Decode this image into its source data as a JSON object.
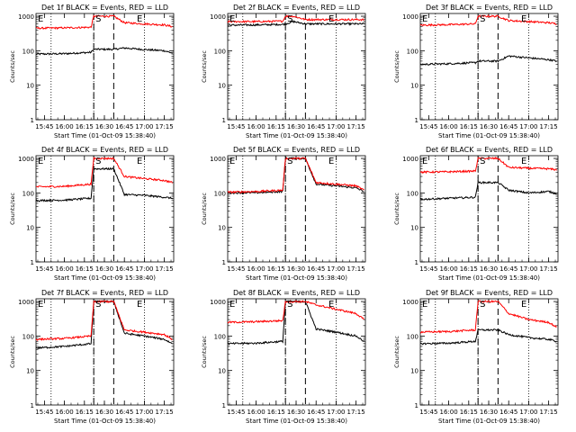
{
  "chart_data": [
    {
      "type": "line",
      "title": "Det 1f BLACK = Events, RED = LLD",
      "ylabel": "Counts/sec",
      "xlabel": "Start Time (01-Oct-09 15:38:40)",
      "x_ticks": [
        "15:45",
        "16:00",
        "16:15",
        "16:30",
        "16:45",
        "17:00",
        "17:15"
      ],
      "y_ticks": [
        "1",
        "10",
        "100",
        "1000"
      ],
      "y_scale": "log",
      "ylim": [
        1,
        1200
      ],
      "x_range": [
        "15:38:40",
        "17:22:00"
      ],
      "markers": [
        {
          "label": "E",
          "time": "15:38:40"
        },
        {
          "label": "S",
          "time": "16:22:00"
        },
        {
          "label": "E",
          "time": "16:53:00"
        }
      ],
      "dotted_lines": [
        "15:50",
        "16:22",
        "17:00"
      ],
      "dashed_lines": [
        "16:22",
        "16:37"
      ],
      "series": [
        {
          "color": "#000000",
          "x": [
            "15:38:40",
            "16:00",
            "16:20",
            "16:22",
            "16:37",
            "16:45",
            "17:00",
            "17:15",
            "17:21"
          ],
          "values": [
            80,
            82,
            90,
            110,
            110,
            120,
            108,
            100,
            85
          ]
        },
        {
          "color": "#ff0000",
          "x": [
            "15:38:40",
            "16:00",
            "16:20",
            "16:22",
            "16:37",
            "16:45",
            "17:00",
            "17:15",
            "17:21"
          ],
          "values": [
            450,
            460,
            480,
            1000,
            1000,
            650,
            600,
            560,
            500
          ]
        }
      ]
    },
    {
      "type": "line",
      "title": "Det 2f BLACK = Events, RED = LLD",
      "ylabel": "Counts/sec",
      "xlabel": "Start Time (01-Oct-09 15:38:40)",
      "x_ticks": [
        "15:45",
        "16:00",
        "16:15",
        "16:30",
        "16:45",
        "17:00",
        "17:15"
      ],
      "y_ticks": [
        "1",
        "10",
        "100",
        "1000"
      ],
      "y_scale": "log",
      "ylim": [
        1,
        1200
      ],
      "x_range": [
        "15:38:40",
        "17:22:00"
      ],
      "markers": [
        {
          "label": "E",
          "time": "15:38:40"
        },
        {
          "label": "S",
          "time": "16:22:00"
        },
        {
          "label": "E",
          "time": "16:53:00"
        }
      ],
      "dotted_lines": [
        "15:50",
        "16:22",
        "17:00"
      ],
      "dashed_lines": [
        "16:22",
        "16:37"
      ],
      "series": [
        {
          "color": "#000000",
          "x": [
            "15:38:40",
            "16:00",
            "16:20",
            "16:22",
            "16:28",
            "16:37",
            "17:00",
            "17:21"
          ],
          "values": [
            550,
            560,
            580,
            600,
            700,
            600,
            600,
            600
          ]
        },
        {
          "color": "#ff0000",
          "x": [
            "15:38:40",
            "16:00",
            "16:20",
            "16:22",
            "16:28",
            "16:37",
            "17:00",
            "17:21"
          ],
          "values": [
            700,
            700,
            720,
            1000,
            1000,
            800,
            800,
            800
          ]
        }
      ]
    },
    {
      "type": "line",
      "title": "Det 3f BLACK = Events, RED = LLD",
      "ylabel": "Counts/sec",
      "xlabel": "Start Time (01-Oct-09 15:38:40)",
      "x_ticks": [
        "15:45",
        "16:00",
        "16:15",
        "16:30",
        "16:45",
        "17:00",
        "17:15"
      ],
      "y_ticks": [
        "1",
        "10",
        "100",
        "1000"
      ],
      "y_scale": "log",
      "ylim": [
        1,
        1200
      ],
      "x_range": [
        "15:38:40",
        "17:22:00"
      ],
      "markers": [
        {
          "label": "E",
          "time": "15:38:40"
        },
        {
          "label": "S",
          "time": "16:22:00"
        },
        {
          "label": "E",
          "time": "16:53:00"
        }
      ],
      "dotted_lines": [
        "15:50",
        "16:22",
        "17:00"
      ],
      "dashed_lines": [
        "16:22",
        "16:37"
      ],
      "series": [
        {
          "color": "#000000",
          "x": [
            "15:38:40",
            "16:00",
            "16:20",
            "16:22",
            "16:37",
            "16:45",
            "17:00",
            "17:15",
            "17:21"
          ],
          "values": [
            40,
            42,
            45,
            50,
            50,
            70,
            62,
            55,
            50
          ]
        },
        {
          "color": "#ff0000",
          "x": [
            "15:38:40",
            "16:00",
            "16:20",
            "16:22",
            "16:37",
            "16:45",
            "17:00",
            "17:15",
            "17:21"
          ],
          "values": [
            550,
            570,
            600,
            1000,
            1000,
            750,
            700,
            650,
            600
          ]
        }
      ]
    },
    {
      "type": "line",
      "title": "Det 4f BLACK = Events, RED = LLD",
      "ylabel": "Counts/sec",
      "xlabel": "Start Time (01-Oct-09 15:38:40)",
      "x_ticks": [
        "15:45",
        "16:00",
        "16:15",
        "16:30",
        "16:45",
        "17:00",
        "17:15"
      ],
      "y_ticks": [
        "1",
        "10",
        "100",
        "1000"
      ],
      "y_scale": "log",
      "ylim": [
        1,
        1200
      ],
      "x_range": [
        "15:38:40",
        "17:22:00"
      ],
      "markers": [
        {
          "label": "E",
          "time": "15:38:40"
        },
        {
          "label": "S",
          "time": "16:22:00"
        },
        {
          "label": "E",
          "time": "16:53:00"
        }
      ],
      "dotted_lines": [
        "15:50",
        "16:22",
        "17:00"
      ],
      "dashed_lines": [
        "16:22",
        "16:37"
      ],
      "series": [
        {
          "color": "#000000",
          "x": [
            "15:38:40",
            "16:00",
            "16:20",
            "16:22",
            "16:37",
            "16:45",
            "17:00",
            "17:15",
            "17:21"
          ],
          "values": [
            60,
            62,
            70,
            500,
            500,
            90,
            85,
            75,
            70
          ]
        },
        {
          "color": "#ff0000",
          "x": [
            "15:38:40",
            "16:00",
            "16:20",
            "16:22",
            "16:37",
            "16:45",
            "17:00",
            "17:15",
            "17:21"
          ],
          "values": [
            150,
            155,
            180,
            1000,
            1000,
            300,
            260,
            230,
            200
          ]
        }
      ]
    },
    {
      "type": "line",
      "title": "Det 5f BLACK = Events, RED = LLD",
      "ylabel": "Counts/sec",
      "xlabel": "Start Time (01-Oct-09 15:38:40)",
      "x_ticks": [
        "15:45",
        "16:00",
        "16:15",
        "16:30",
        "16:45",
        "17:00",
        "17:15"
      ],
      "y_ticks": [
        "1",
        "10",
        "100",
        "1000"
      ],
      "y_scale": "log",
      "ylim": [
        1,
        1200
      ],
      "x_range": [
        "15:38:40",
        "17:22:00"
      ],
      "markers": [
        {
          "label": "E",
          "time": "15:38:40"
        },
        {
          "label": "S",
          "time": "16:22:00"
        },
        {
          "label": "E",
          "time": "16:53:00"
        }
      ],
      "dotted_lines": [
        "15:50",
        "16:22",
        "17:00"
      ],
      "dashed_lines": [
        "16:22",
        "16:37"
      ],
      "series": [
        {
          "color": "#000000",
          "x": [
            "15:38:40",
            "16:00",
            "16:20",
            "16:22",
            "16:37",
            "16:45",
            "17:00",
            "17:15",
            "17:21"
          ],
          "values": [
            100,
            102,
            110,
            1000,
            1000,
            180,
            160,
            140,
            110
          ]
        },
        {
          "color": "#ff0000",
          "x": [
            "15:38:40",
            "16:00",
            "16:20",
            "16:22",
            "16:37",
            "16:45",
            "17:00",
            "17:15",
            "17:21"
          ],
          "values": [
            105,
            110,
            120,
            1000,
            1000,
            200,
            180,
            160,
            120
          ]
        }
      ]
    },
    {
      "type": "line",
      "title": "Det 6f BLACK = Events, RED = LLD",
      "ylabel": "Counts/sec",
      "xlabel": "Start Time (01-Oct-09 15:38:40)",
      "x_ticks": [
        "15:45",
        "16:00",
        "16:15",
        "16:30",
        "16:45",
        "17:00",
        "17:15"
      ],
      "y_ticks": [
        "1",
        "10",
        "100",
        "1000"
      ],
      "y_scale": "log",
      "ylim": [
        1,
        1200
      ],
      "x_range": [
        "15:38:40",
        "17:22:00"
      ],
      "markers": [
        {
          "label": "E",
          "time": "15:38:40"
        },
        {
          "label": "S",
          "time": "16:22:00"
        },
        {
          "label": "E",
          "time": "16:53:00"
        }
      ],
      "dotted_lines": [
        "15:50",
        "16:22",
        "17:00"
      ],
      "dashed_lines": [
        "16:22",
        "16:37"
      ],
      "series": [
        {
          "color": "#000000",
          "x": [
            "15:38:40",
            "16:00",
            "16:20",
            "16:22",
            "16:37",
            "16:45",
            "17:00",
            "17:15",
            "17:21"
          ],
          "values": [
            65,
            70,
            75,
            200,
            200,
            120,
            100,
            110,
            95
          ]
        },
        {
          "color": "#ff0000",
          "x": [
            "15:38:40",
            "16:00",
            "16:20",
            "16:22",
            "16:37",
            "16:45",
            "17:00",
            "17:15",
            "17:21"
          ],
          "values": [
            400,
            410,
            430,
            1000,
            1000,
            550,
            520,
            500,
            470
          ]
        }
      ]
    },
    {
      "type": "line",
      "title": "Det 7f BLACK = Events, RED = LLD",
      "ylabel": "Counts/sec",
      "xlabel": "Start Time (01-Oct-09 15:38:40)",
      "x_ticks": [
        "15:45",
        "16:00",
        "16:15",
        "16:30",
        "16:45",
        "17:00",
        "17:15"
      ],
      "y_ticks": [
        "1",
        "10",
        "100",
        "1000"
      ],
      "y_scale": "log",
      "ylim": [
        1,
        1200
      ],
      "x_range": [
        "15:38:40",
        "17:22:00"
      ],
      "markers": [
        {
          "label": "E",
          "time": "15:38:40"
        },
        {
          "label": "S",
          "time": "16:22:00"
        },
        {
          "label": "E",
          "time": "16:53:00"
        }
      ],
      "dotted_lines": [
        "15:50",
        "16:22",
        "17:00"
      ],
      "dashed_lines": [
        "16:22",
        "16:37"
      ],
      "series": [
        {
          "color": "#000000",
          "x": [
            "15:38:40",
            "16:00",
            "16:20",
            "16:22",
            "16:37",
            "16:45",
            "17:00",
            "17:15",
            "17:21"
          ],
          "values": [
            45,
            50,
            60,
            1000,
            1000,
            120,
            100,
            80,
            60
          ]
        },
        {
          "color": "#ff0000",
          "x": [
            "15:38:40",
            "16:00",
            "16:20",
            "16:22",
            "16:37",
            "16:45",
            "17:00",
            "17:15",
            "17:21"
          ],
          "values": [
            80,
            85,
            100,
            1000,
            1000,
            150,
            130,
            110,
            80
          ]
        }
      ]
    },
    {
      "type": "line",
      "title": "Det 8f BLACK = Events, RED = LLD",
      "ylabel": "Counts/sec",
      "xlabel": "Start Time (01-Oct-09 15:38:40)",
      "x_ticks": [
        "15:45",
        "16:00",
        "16:15",
        "16:30",
        "16:45",
        "17:00",
        "17:15"
      ],
      "y_ticks": [
        "1",
        "10",
        "100",
        "1000"
      ],
      "y_scale": "log",
      "ylim": [
        1,
        1200
      ],
      "x_range": [
        "15:38:40",
        "17:22:00"
      ],
      "markers": [
        {
          "label": "E",
          "time": "15:38:40"
        },
        {
          "label": "S",
          "time": "16:22:00"
        },
        {
          "label": "E",
          "time": "16:53:00"
        }
      ],
      "dotted_lines": [
        "15:50",
        "16:22",
        "17:00"
      ],
      "dashed_lines": [
        "16:22",
        "16:37"
      ],
      "series": [
        {
          "color": "#000000",
          "x": [
            "15:38:40",
            "16:00",
            "16:20",
            "16:22",
            "16:37",
            "16:45",
            "17:00",
            "17:15",
            "17:21"
          ],
          "values": [
            60,
            62,
            70,
            1000,
            1000,
            160,
            130,
            100,
            70
          ]
        },
        {
          "color": "#ff0000",
          "x": [
            "15:38:40",
            "16:00",
            "16:20",
            "16:22",
            "16:37",
            "16:45",
            "17:00",
            "17:15",
            "17:21"
          ],
          "values": [
            250,
            260,
            280,
            1000,
            1000,
            800,
            600,
            450,
            300
          ]
        }
      ]
    },
    {
      "type": "line",
      "title": "Det 9f BLACK = Events, RED = LLD",
      "ylabel": "Counts/sec",
      "xlabel": "Start Time (01-Oct-09 15:38:40)",
      "x_ticks": [
        "15:45",
        "16:00",
        "16:15",
        "16:30",
        "16:45",
        "17:00",
        "17:15"
      ],
      "y_ticks": [
        "1",
        "10",
        "100",
        "1000"
      ],
      "y_scale": "log",
      "ylim": [
        1,
        1200
      ],
      "x_range": [
        "15:38:40",
        "17:22:00"
      ],
      "markers": [
        {
          "label": "E",
          "time": "15:38:40"
        },
        {
          "label": "S",
          "time": "16:22:00"
        },
        {
          "label": "E",
          "time": "16:53:00"
        }
      ],
      "dotted_lines": [
        "15:50",
        "16:22",
        "17:00"
      ],
      "dashed_lines": [
        "16:22",
        "16:37"
      ],
      "series": [
        {
          "color": "#000000",
          "x": [
            "15:38:40",
            "16:00",
            "16:20",
            "16:22",
            "16:37",
            "16:45",
            "17:00",
            "17:15",
            "17:21"
          ],
          "values": [
            60,
            62,
            70,
            150,
            150,
            110,
            90,
            80,
            70
          ]
        },
        {
          "color": "#ff0000",
          "x": [
            "15:38:40",
            "16:00",
            "16:20",
            "16:22",
            "16:37",
            "16:45",
            "17:00",
            "17:15",
            "17:21"
          ],
          "values": [
            130,
            135,
            150,
            1000,
            1000,
            450,
            300,
            250,
            180
          ]
        }
      ]
    }
  ]
}
